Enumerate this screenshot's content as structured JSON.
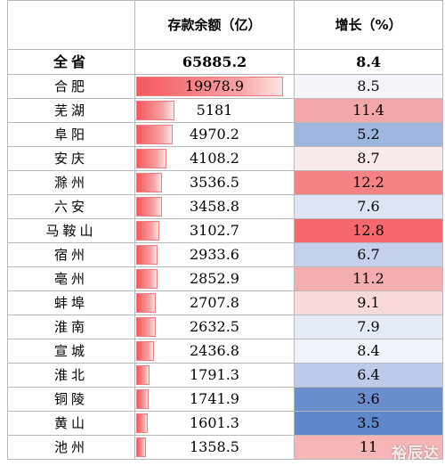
{
  "header": {
    "region": "",
    "deposit": "存款余额（亿）",
    "growth": "增长（%）"
  },
  "total": {
    "region": "全省",
    "deposit": "65885.2",
    "growth": "8.4"
  },
  "rows": [
    {
      "city": "合肥",
      "deposit": "19978.9",
      "growth": "8.5",
      "growth_color": "#f4f4fb"
    },
    {
      "city": "芜湖",
      "deposit": "5181",
      "growth": "11.4",
      "growth_color": "#f4a7a9"
    },
    {
      "city": "阜阳",
      "deposit": "4970.2",
      "growth": "5.2",
      "growth_color": "#9eb6df"
    },
    {
      "city": "安庆",
      "deposit": "4108.2",
      "growth": "8.7",
      "growth_color": "#fbeaec"
    },
    {
      "city": "滁州",
      "deposit": "3536.5",
      "growth": "12.2",
      "growth_color": "#f58385"
    },
    {
      "city": "六安",
      "deposit": "3458.8",
      "growth": "7.6",
      "growth_color": "#dde5f4"
    },
    {
      "city": "马鞍山",
      "deposit": "3102.7",
      "growth": "12.8",
      "growth_color": "#f5686b"
    },
    {
      "city": "宿州",
      "deposit": "2933.6",
      "growth": "6.7",
      "growth_color": "#c3d1ec"
    },
    {
      "city": "亳州",
      "deposit": "2852.9",
      "growth": "11.2",
      "growth_color": "#f4aeb0"
    },
    {
      "city": "蚌埠",
      "deposit": "2707.8",
      "growth": "9.1",
      "growth_color": "#fad9da"
    },
    {
      "city": "淮南",
      "deposit": "2632.5",
      "growth": "7.9",
      "growth_color": "#e5ebf6"
    },
    {
      "city": "宣城",
      "deposit": "2436.8",
      "growth": "8.4",
      "growth_color": "#f1f3fa"
    },
    {
      "city": "淮北",
      "deposit": "1791.3",
      "growth": "6.4",
      "growth_color": "#bccbe9"
    },
    {
      "city": "铜陵",
      "deposit": "1741.9",
      "growth": "3.6",
      "growth_color": "#6a8ecd"
    },
    {
      "city": "黄山",
      "deposit": "1601.3",
      "growth": "3.5",
      "growth_color": "#5f87cb"
    },
    {
      "city": "池州",
      "deposit": "1358.5",
      "growth": "11",
      "growth_color": "#f6b6b7"
    }
  ],
  "deposit_bar_max": 19978.9,
  "watermark": "裕辰达"
}
